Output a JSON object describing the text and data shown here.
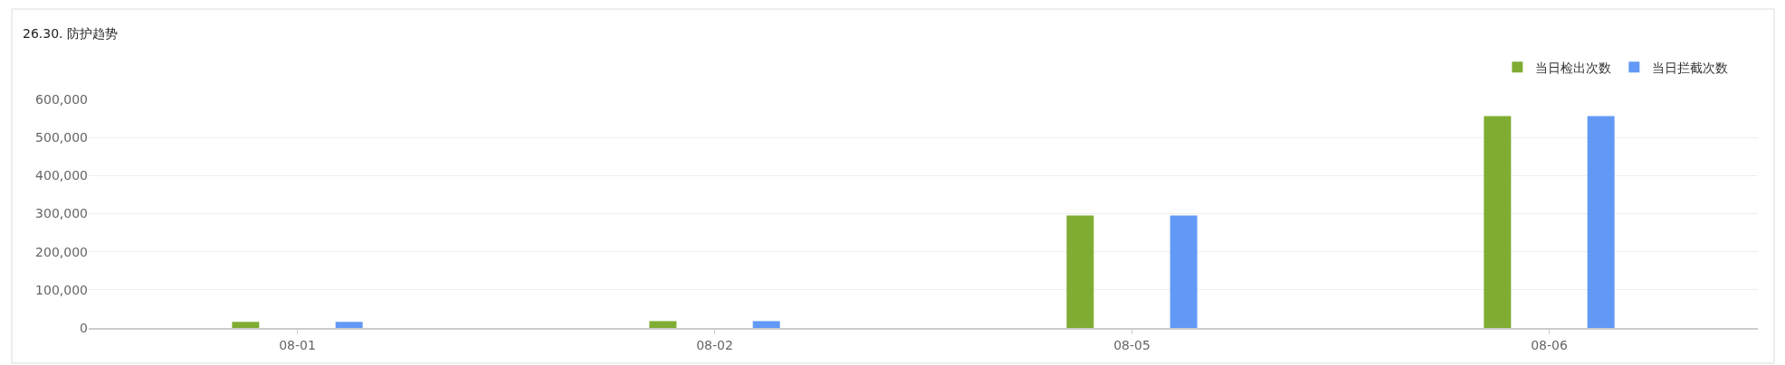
{
  "chart_data": {
    "type": "bar",
    "title": "26.30. 防护趋势",
    "categories": [
      "08-01",
      "08-02",
      "08-05",
      "08-06"
    ],
    "series": [
      {
        "name": "当日检出次数",
        "color": "#7fad33",
        "values": [
          16000,
          18000,
          295000,
          556000
        ]
      },
      {
        "name": "当日拦截次数",
        "color": "#6399f6",
        "values": [
          16000,
          18000,
          295000,
          556000
        ]
      }
    ],
    "ylim": [
      0,
      600000
    ],
    "yticks": [
      0,
      {
        "value": 100000,
        "label": "100,000"
      },
      {
        "value": 200000,
        "label": "200,000"
      },
      {
        "value": 300000,
        "label": "300,000"
      },
      {
        "value": 400000,
        "label": "400,000"
      },
      {
        "value": 500000,
        "label": "500,000"
      },
      {
        "value": 600000,
        "label": "600,000"
      }
    ],
    "grid": "y",
    "legend": "top right"
  }
}
